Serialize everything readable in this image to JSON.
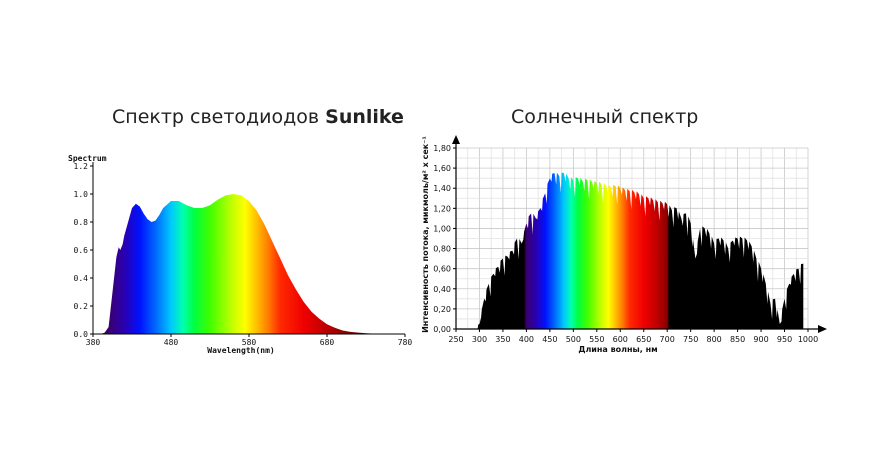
{
  "titles": {
    "left_prefix": "Спектр светодиодов ",
    "left_bold": "Sunlike",
    "right": "Солнечный спектр"
  },
  "chart_data": [
    {
      "type": "area",
      "title": "Спектр светодиодов Sunlike",
      "ylabel": "Spectrum",
      "xlabel": "Wavelength(nm)",
      "xlim": [
        380,
        780
      ],
      "ylim": [
        0,
        1.2
      ],
      "x_ticks": [
        380,
        480,
        580,
        680,
        780
      ],
      "x_tick_labels": [
        "380",
        "480",
        "580",
        "680",
        "780"
      ],
      "y_ticks": [
        0,
        0.2,
        0.4,
        0.6,
        0.8,
        1.0,
        1.2
      ],
      "y_tick_labels": [
        "0.0",
        "0.2",
        "0.4",
        "0.6",
        "0.8",
        "1.0",
        "1.2"
      ],
      "grid": false,
      "fill": "visible-spectrum gradient",
      "x": [
        380,
        390,
        395,
        400,
        405,
        410,
        413,
        415,
        418,
        420,
        425,
        430,
        435,
        440,
        445,
        450,
        455,
        460,
        465,
        470,
        480,
        490,
        500,
        510,
        520,
        530,
        540,
        550,
        560,
        570,
        580,
        590,
        600,
        610,
        620,
        630,
        640,
        650,
        660,
        670,
        680,
        690,
        700,
        710,
        720,
        730,
        740,
        750,
        760,
        770,
        780
      ],
      "values": [
        0,
        0,
        0.01,
        0.05,
        0.3,
        0.55,
        0.62,
        0.6,
        0.64,
        0.7,
        0.8,
        0.9,
        0.93,
        0.91,
        0.86,
        0.82,
        0.8,
        0.81,
        0.85,
        0.9,
        0.95,
        0.95,
        0.92,
        0.9,
        0.9,
        0.92,
        0.96,
        0.99,
        1.0,
        0.99,
        0.95,
        0.88,
        0.78,
        0.66,
        0.54,
        0.42,
        0.32,
        0.23,
        0.16,
        0.11,
        0.07,
        0.045,
        0.025,
        0.015,
        0.01,
        0.006,
        0.003,
        0.002,
        0.001,
        0,
        0
      ]
    },
    {
      "type": "area",
      "title": "Солнечный спектр",
      "ylabel": "Интенсивность потока, микмоль/м² х сек⁻¹",
      "xlabel": "Длина волны, нм",
      "xlim": [
        250,
        1000
      ],
      "ylim": [
        0,
        1.8
      ],
      "x_ticks": [
        250,
        300,
        350,
        400,
        450,
        500,
        550,
        600,
        650,
        700,
        750,
        800,
        850,
        900,
        950,
        1000
      ],
      "x_tick_labels": [
        "250",
        "300",
        "350",
        "400",
        "450",
        "500",
        "550",
        "600",
        "650",
        "700",
        "750",
        "800",
        "850",
        "900",
        "950",
        "1000"
      ],
      "y_ticks": [
        0,
        0.2,
        0.4,
        0.6,
        0.8,
        1.0,
        1.2,
        1.4,
        1.6,
        1.8
      ],
      "y_tick_labels": [
        "0,00",
        "0,20",
        "0,40",
        "0,60",
        "0,80",
        "1,00",
        "1,20",
        "1,40",
        "1,60",
        "1,80"
      ],
      "grid": true,
      "fill": "visible-spectrum 400-700 nm, black elsewhere",
      "x": [
        295,
        300,
        310,
        320,
        330,
        340,
        350,
        360,
        370,
        380,
        390,
        400,
        410,
        420,
        430,
        440,
        450,
        460,
        470,
        480,
        490,
        500,
        510,
        520,
        530,
        540,
        550,
        560,
        570,
        580,
        590,
        600,
        610,
        620,
        630,
        640,
        650,
        660,
        670,
        680,
        690,
        700,
        710,
        720,
        730,
        740,
        750,
        760,
        770,
        780,
        790,
        800,
        810,
        820,
        830,
        840,
        850,
        860,
        870,
        880,
        890,
        900,
        910,
        920,
        930,
        940,
        950,
        960,
        970,
        980,
        990
      ],
      "values": [
        0,
        0.05,
        0.3,
        0.45,
        0.55,
        0.62,
        0.7,
        0.72,
        0.78,
        0.9,
        0.85,
        1.05,
        1.15,
        1.1,
        1.2,
        1.35,
        1.5,
        1.55,
        1.52,
        1.55,
        1.5,
        1.48,
        1.5,
        1.47,
        1.48,
        1.46,
        1.45,
        1.44,
        1.42,
        1.41,
        1.42,
        1.4,
        1.38,
        1.37,
        1.36,
        1.34,
        1.3,
        1.3,
        1.28,
        1.26,
        1.25,
        1.24,
        1.18,
        1.2,
        1.1,
        1.15,
        1.05,
        0.7,
        1.0,
        1.0,
        0.95,
        0.85,
        0.9,
        0.88,
        0.8,
        0.88,
        0.9,
        0.9,
        0.88,
        0.82,
        0.7,
        0.6,
        0.45,
        0.25,
        0.3,
        0.05,
        0.3,
        0.45,
        0.55,
        0.6,
        0.65
      ]
    }
  ]
}
